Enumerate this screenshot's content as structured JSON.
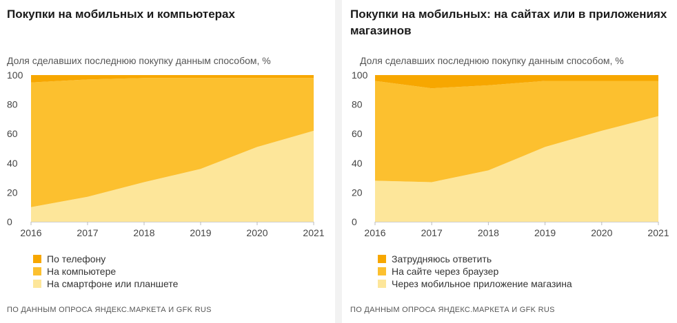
{
  "colors": {
    "phone": "#f7a700",
    "computer": "#fcc02f",
    "smartphone": "#fde69a",
    "no_answer": "#f7a700",
    "browser": "#fcc02f",
    "app": "#fde69a"
  },
  "chart_data": [
    {
      "type": "area",
      "stacked": true,
      "title": "Покупки на мобильных и компьютерах",
      "subtitle": "Доля сделавших последнюю покупку данным способом, %",
      "x": [
        "2016",
        "2017",
        "2018",
        "2019",
        "2020",
        "2021"
      ],
      "ylim": [
        0,
        100
      ],
      "yticks": [
        "0",
        "20",
        "40",
        "60",
        "80",
        "100"
      ],
      "grid": false,
      "legend_position": "bottom-left",
      "series": [
        {
          "name": "На смартфоне или планшете",
          "color_key": "smartphone",
          "values": [
            10,
            17,
            27,
            36,
            51,
            62
          ]
        },
        {
          "name": "На компьютере",
          "color_key": "computer",
          "values": [
            85,
            80,
            71,
            62,
            47,
            36
          ]
        },
        {
          "name": "По телефону",
          "color_key": "phone",
          "values": [
            5,
            3,
            2,
            2,
            2,
            2
          ]
        }
      ],
      "legend": [
        "По телефону",
        "На компьютере",
        "На смартфоне или планшете"
      ],
      "source": "ПО ДАННЫМ ОПРОСА ЯНДЕКС.МАРКЕТА И GFK RUS"
    },
    {
      "type": "area",
      "stacked": true,
      "title": "Покупки на мобильных: на сайтах или в приложениях магазинов",
      "subtitle": "Доля сделавших последнюю покупку данным способом, %",
      "x": [
        "2016",
        "2017",
        "2018",
        "2019",
        "2020",
        "2021"
      ],
      "ylim": [
        0,
        100
      ],
      "yticks": [
        "0",
        "20",
        "40",
        "60",
        "80",
        "100"
      ],
      "grid": false,
      "legend_position": "bottom-left",
      "series": [
        {
          "name": "Через мобильное приложение магазина",
          "color_key": "app",
          "values": [
            28,
            27,
            35,
            51,
            62,
            72
          ]
        },
        {
          "name": "На сайте через браузер",
          "color_key": "browser",
          "values": [
            68,
            64,
            58,
            45,
            34,
            24
          ]
        },
        {
          "name": "Затрудняюсь ответить",
          "color_key": "no_answer",
          "values": [
            4,
            9,
            7,
            4,
            4,
            4
          ]
        }
      ],
      "legend": [
        "Затрудняюсь ответить",
        "На сайте через браузер",
        "Через мобильное приложение магазина"
      ],
      "source": "ПО ДАННЫМ ОПРОСА ЯНДЕКС.МАРКЕТА И GFK RUS"
    }
  ]
}
